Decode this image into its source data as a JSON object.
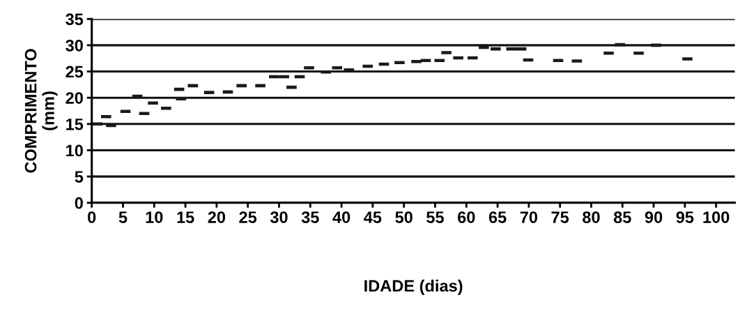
{
  "chart_data": {
    "type": "scatter",
    "xlabel": "IDADE (dias)",
    "ylabel": "COMPRIMENTO\n(mm)",
    "x": [
      0.9,
      2.3,
      3.1,
      5.4,
      7.3,
      8.4,
      9.8,
      11.9,
      14.0,
      14.3,
      16.2,
      18.8,
      21.8,
      24.0,
      27.0,
      29.2,
      30.8,
      32.0,
      33.3,
      34.8,
      37.5,
      39.3,
      41.2,
      44.2,
      46.8,
      49.3,
      52.0,
      53.5,
      55.7,
      56.8,
      58.7,
      61.0,
      62.8,
      64.7,
      67.2,
      68.8,
      69.9,
      74.7,
      77.7,
      82.8,
      84.6,
      87.6,
      90.4,
      95.4
    ],
    "values": [
      15.0,
      16.4,
      14.7,
      17.4,
      20.3,
      17.0,
      19.0,
      18.0,
      21.6,
      19.8,
      22.3,
      21.0,
      21.1,
      22.3,
      22.3,
      24.0,
      24.0,
      22.0,
      24.0,
      25.7,
      24.9,
      25.7,
      25.3,
      26.0,
      26.4,
      26.7,
      26.9,
      27.1,
      27.1,
      28.6,
      27.6,
      27.6,
      29.6,
      29.3,
      29.3,
      29.3,
      27.2,
      27.1,
      27.0,
      28.5,
      30.1,
      28.5,
      30.0,
      27.4
    ],
    "color": "#1a1a1a",
    "marker": "square",
    "grid": "y",
    "xlim": [
      0,
      103
    ],
    "ylim": [
      0,
      35
    ],
    "xticks": [
      0,
      5,
      10,
      15,
      20,
      25,
      30,
      35,
      40,
      45,
      50,
      55,
      60,
      65,
      70,
      75,
      80,
      85,
      90,
      95,
      100
    ],
    "yticks": [
      0,
      5,
      10,
      15,
      20,
      25,
      30,
      35
    ]
  }
}
